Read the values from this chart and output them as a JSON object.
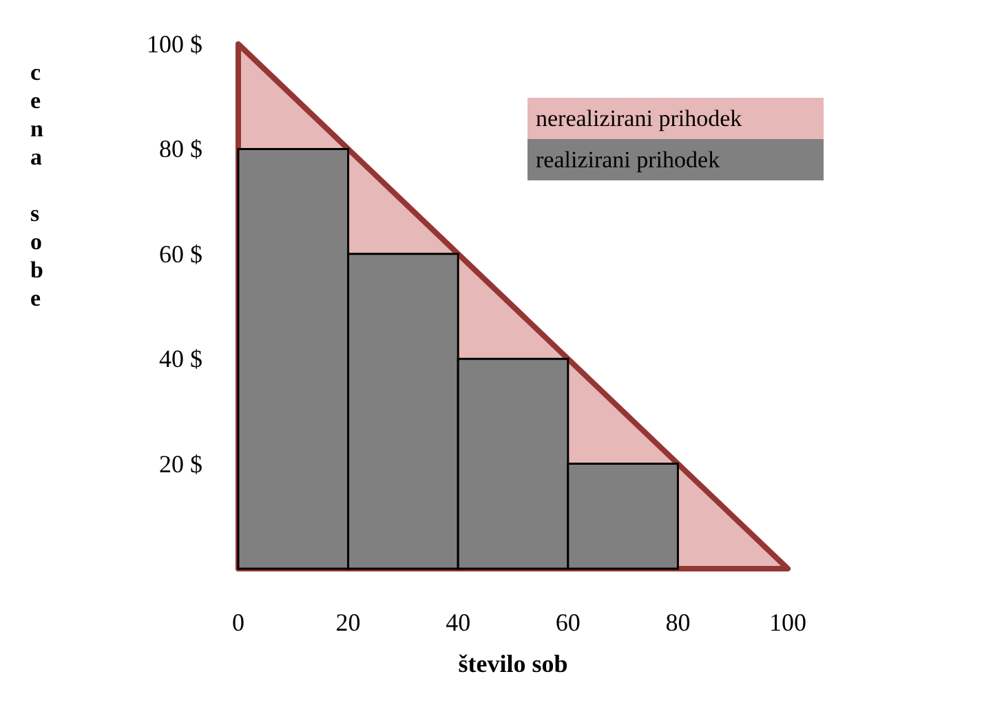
{
  "chart_data": {
    "type": "histogram",
    "xlabel": "število sob",
    "ylabel": "cena sobe",
    "xlim": [
      0,
      100
    ],
    "ylim": [
      0,
      100
    ],
    "xticks": [
      0,
      20,
      40,
      60,
      80,
      100
    ],
    "yticks": [
      {
        "value": 20,
        "label": "20 $"
      },
      {
        "value": 40,
        "label": "40 $"
      },
      {
        "value": 60,
        "label": "60 $"
      },
      {
        "value": 80,
        "label": "80 $"
      },
      {
        "value": 100,
        "label": "100 $"
      }
    ],
    "bins": [
      0,
      20,
      40,
      60,
      80
    ],
    "series": [
      {
        "name": "nerealizirani prihodek",
        "type": "area",
        "color": "#e6b8b7",
        "x": [
          0,
          100
        ],
        "values": [
          100,
          0
        ]
      },
      {
        "name": "realizirani prihodek",
        "color": "#808080",
        "values": [
          80,
          60,
          40,
          20
        ]
      }
    ],
    "legend": "top right",
    "grid": false
  }
}
